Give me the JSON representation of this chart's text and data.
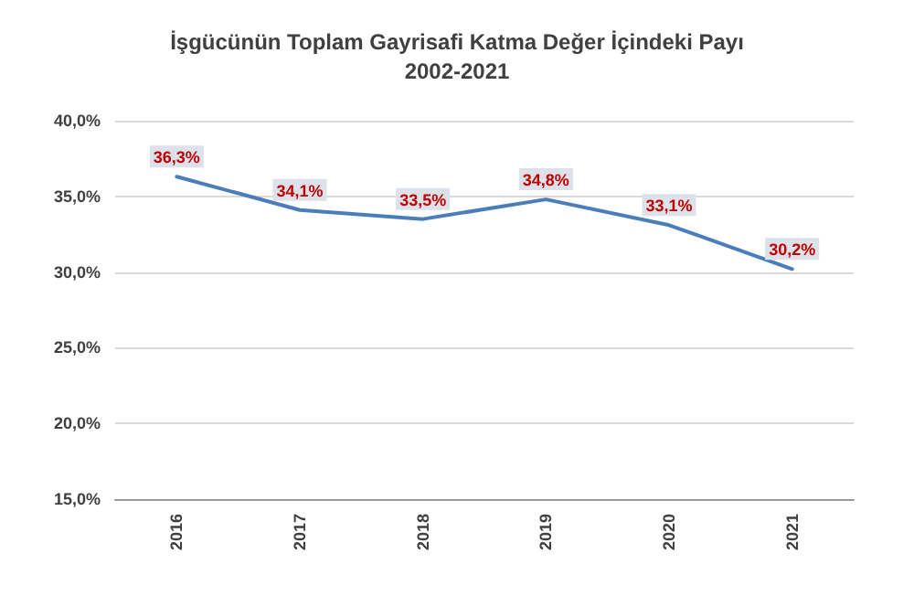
{
  "chart_data": {
    "type": "line",
    "title": "İşgücünün Toplam Gayrisafi Katma Değer İçindeki Payı",
    "subtitle": "2002-2021",
    "categories": [
      "2016",
      "2017",
      "2018",
      "2019",
      "2020",
      "2021"
    ],
    "series": [
      {
        "color": "#4a7ebb",
        "values": [
          36.3,
          34.1,
          33.5,
          34.8,
          33.1,
          30.2
        ],
        "value_labels": [
          "36,3%",
          "34,1%",
          "33,5%",
          "34,8%",
          "33,1%",
          "30,2%"
        ]
      }
    ],
    "ylim": [
      15,
      40
    ],
    "yticks": [
      {
        "value": 15,
        "label": "15,0%"
      },
      {
        "value": 20,
        "label": "20,0%"
      },
      {
        "value": 25,
        "label": "25,0%"
      },
      {
        "value": 30,
        "label": "30,0%"
      },
      {
        "value": 35,
        "label": "35,0%"
      },
      {
        "value": 40,
        "label": "40,0%"
      }
    ],
    "grid": "y",
    "marker": "none",
    "line_style": "solid"
  }
}
